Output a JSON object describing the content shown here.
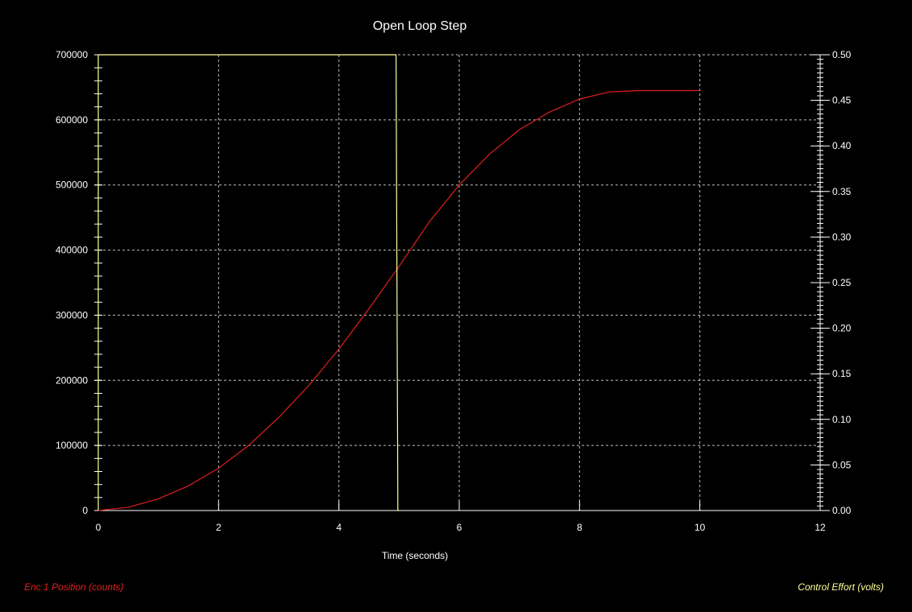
{
  "colors": {
    "background": "#000000",
    "axis": "#ffffff",
    "grid": "#bfbfbf",
    "position_series": "#e0201c",
    "effort_series": "#ffff99",
    "text": "#ffffff"
  },
  "chart_data": {
    "type": "line",
    "title": "Open Loop Step",
    "xlabel": "Time (seconds)",
    "ylabel": "Enc 1 Position (counts)",
    "y2label": "Control Effort (volts)",
    "xlim": [
      0,
      12
    ],
    "ylim": [
      0,
      700000
    ],
    "y2lim": [
      0,
      0.5
    ],
    "grid": true,
    "x_ticks": [
      "0",
      "2",
      "4",
      "6",
      "8",
      "10",
      "12"
    ],
    "y_ticks": [
      "0",
      "100000",
      "200000",
      "300000",
      "400000",
      "500000",
      "600000",
      "700000"
    ],
    "y2_ticks": [
      "0.00",
      "0.05",
      "0.10",
      "0.15",
      "0.20",
      "0.25",
      "0.30",
      "0.35",
      "0.40",
      "0.45",
      "0.50"
    ],
    "series": [
      {
        "name": "Enc 1 Position (counts)",
        "axis": "left",
        "color": "#e0201c",
        "x": [
          0,
          0.5,
          1,
          1.5,
          2,
          2.5,
          3,
          3.5,
          4,
          4.5,
          5,
          5.5,
          6,
          6.5,
          7,
          7.5,
          8,
          8.5,
          9,
          9.5,
          10
        ],
        "y": [
          0,
          5000,
          18000,
          38000,
          65000,
          100000,
          143000,
          192000,
          248000,
          310000,
          375000,
          443000,
          500000,
          547000,
          585000,
          612000,
          632000,
          643000,
          645000,
          645000,
          645000
        ]
      },
      {
        "name": "Control Effort (volts)",
        "axis": "right",
        "color": "#ffff99",
        "x": [
          0,
          0,
          4.95,
          4.98,
          5.0
        ],
        "y": [
          0,
          0.5,
          0.5,
          0.0,
          0.0
        ]
      }
    ]
  }
}
